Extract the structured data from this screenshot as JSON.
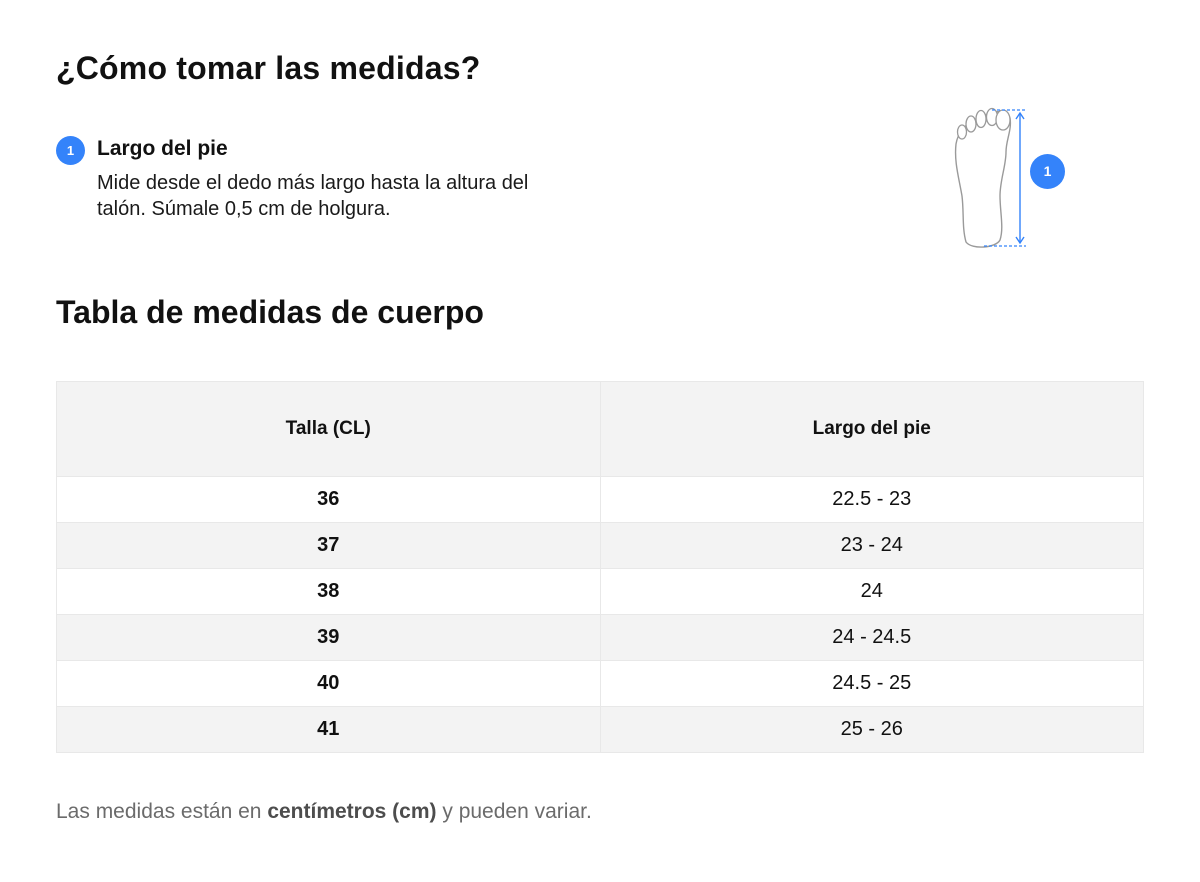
{
  "header": {
    "title": "¿Cómo tomar las medidas?"
  },
  "step": {
    "number": "1",
    "title": "Largo del pie",
    "description": "Mide desde el dedo más largo hasta la altura del talón. Súmale 0,5 cm de holgura."
  },
  "figure": {
    "icon": "foot-measure-icon",
    "badge": "1",
    "accent_color": "#3483fa"
  },
  "table_section": {
    "title": "Tabla de medidas de cuerpo",
    "columns": [
      "Talla (CL)",
      "Largo del pie"
    ],
    "rows": [
      {
        "size": "36",
        "length": "22.5 - 23"
      },
      {
        "size": "37",
        "length": "23 - 24"
      },
      {
        "size": "38",
        "length": "24"
      },
      {
        "size": "39",
        "length": "24 - 24.5"
      },
      {
        "size": "40",
        "length": "24.5 - 25"
      },
      {
        "size": "41",
        "length": "25 - 26"
      }
    ]
  },
  "footnote": {
    "prefix": "Las medidas están en ",
    "bold": "centímetros (cm)",
    "suffix": " y pueden variar."
  }
}
